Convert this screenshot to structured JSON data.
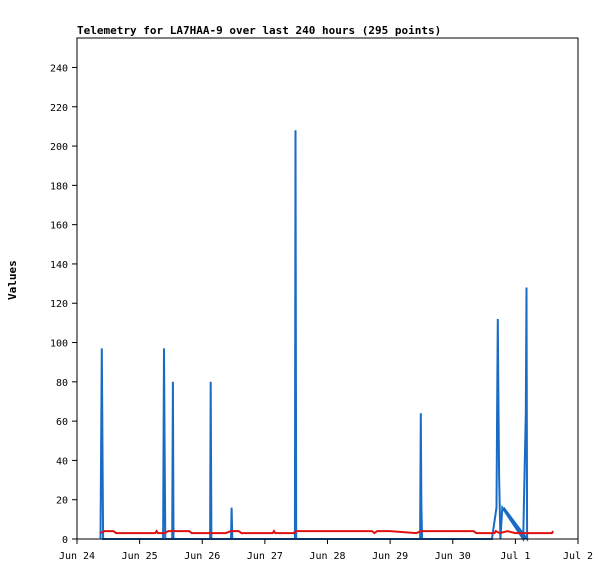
{
  "chart_data": {
    "type": "line",
    "title": "Telemetry for LA7HAA-9 over last 240 hours (295 points)",
    "xlabel": "",
    "ylabel": "Values",
    "ylim": [
      0,
      255
    ],
    "yticks": [
      0,
      20,
      40,
      60,
      80,
      100,
      120,
      140,
      160,
      180,
      200,
      220,
      240
    ],
    "xlim": [
      "2021-06-24T00:00",
      "2021-07-02T00:00"
    ],
    "xticks": [
      {
        "t": "2021-06-24T00:00",
        "label": "Jun 24"
      },
      {
        "t": "2021-06-25T00:00",
        "label": "Jun 25"
      },
      {
        "t": "2021-06-26T00:00",
        "label": "Jun 26"
      },
      {
        "t": "2021-06-27T00:00",
        "label": "Jun 27"
      },
      {
        "t": "2021-06-28T00:00",
        "label": "Jun 28"
      },
      {
        "t": "2021-06-29T00:00",
        "label": "Jun 29"
      },
      {
        "t": "2021-06-30T00:00",
        "label": "Jun 30"
      },
      {
        "t": "2021-07-01T00:00",
        "label": "Jul 1"
      },
      {
        "t": "2021-07-02T00:00",
        "label": "Jul 2"
      }
    ],
    "grid": false,
    "legend": "none",
    "series": [
      {
        "color": "#1a6bc4",
        "points": [
          [
            "2021-06-24T09:00",
            0
          ],
          [
            "2021-06-24T09:30",
            97
          ],
          [
            "2021-06-24T10:00",
            0
          ],
          [
            "2021-06-25T09:00",
            0
          ],
          [
            "2021-06-25T09:20",
            97
          ],
          [
            "2021-06-25T09:35",
            48
          ],
          [
            "2021-06-25T09:50",
            0
          ],
          [
            "2021-06-25T12:30",
            0
          ],
          [
            "2021-06-25T12:45",
            80
          ],
          [
            "2021-06-25T13:00",
            0
          ],
          [
            "2021-06-26T03:00",
            0
          ],
          [
            "2021-06-26T03:15",
            80
          ],
          [
            "2021-06-26T03:30",
            0
          ],
          [
            "2021-06-26T11:00",
            0
          ],
          [
            "2021-06-26T11:15",
            16
          ],
          [
            "2021-06-26T11:30",
            0
          ],
          [
            "2021-06-27T11:30",
            0
          ],
          [
            "2021-06-27T11:45",
            208
          ],
          [
            "2021-06-27T12:00",
            0
          ],
          [
            "2021-06-29T11:30",
            0
          ],
          [
            "2021-06-29T11:45",
            64
          ],
          [
            "2021-06-29T12:00",
            16
          ],
          [
            "2021-06-29T12:15",
            0
          ],
          [
            "2021-06-30T15:00",
            0
          ],
          [
            "2021-06-30T16:45",
            16
          ],
          [
            "2021-06-30T17:00",
            64
          ],
          [
            "2021-06-30T17:15",
            112
          ],
          [
            "2021-06-30T17:30",
            72
          ],
          [
            "2021-06-30T17:45",
            32
          ],
          [
            "2021-06-30T18:15",
            0
          ],
          [
            "2021-06-30T19:00",
            16
          ],
          [
            "2021-07-01T03:00",
            0
          ],
          [
            "2021-07-01T04:00",
            64
          ],
          [
            "2021-07-01T04:15",
            128
          ],
          [
            "2021-07-01T04:30",
            0
          ],
          [
            "2021-06-30T19:30",
            16
          ],
          [
            "2021-07-01T03:45",
            0
          ]
        ]
      },
      {
        "color": "#e01010",
        "points": [
          [
            "2021-06-24T09:00",
            3
          ],
          [
            "2021-06-24T10:30",
            4
          ],
          [
            "2021-06-24T14:00",
            4
          ],
          [
            "2021-06-24T15:00",
            3
          ],
          [
            "2021-06-25T06:00",
            3
          ],
          [
            "2021-06-25T06:30",
            4
          ],
          [
            "2021-06-25T07:00",
            3
          ],
          [
            "2021-06-25T09:30",
            3
          ],
          [
            "2021-06-25T11:00",
            4
          ],
          [
            "2021-06-25T19:00",
            4
          ],
          [
            "2021-06-25T20:00",
            3
          ],
          [
            "2021-06-26T03:00",
            3
          ],
          [
            "2021-06-26T09:00",
            3
          ],
          [
            "2021-06-26T11:00",
            4
          ],
          [
            "2021-06-26T14:00",
            4
          ],
          [
            "2021-06-26T15:00",
            3
          ],
          [
            "2021-06-27T03:00",
            3
          ],
          [
            "2021-06-27T03:30",
            4
          ],
          [
            "2021-06-27T04:00",
            3
          ],
          [
            "2021-06-27T11:00",
            3
          ],
          [
            "2021-06-27T12:00",
            4
          ],
          [
            "2021-06-28T17:00",
            4
          ],
          [
            "2021-06-28T18:00",
            3
          ],
          [
            "2021-06-28T19:00",
            4
          ],
          [
            "2021-06-29T00:00",
            4
          ],
          [
            "2021-06-29T10:00",
            3
          ],
          [
            "2021-06-29T12:00",
            4
          ],
          [
            "2021-06-30T08:00",
            4
          ],
          [
            "2021-06-30T09:00",
            3
          ],
          [
            "2021-06-30T16:00",
            3
          ],
          [
            "2021-06-30T16:30",
            4
          ],
          [
            "2021-06-30T18:00",
            3
          ],
          [
            "2021-06-30T21:00",
            4
          ],
          [
            "2021-07-01T00:00",
            3
          ],
          [
            "2021-07-01T02:00",
            3
          ],
          [
            "2021-07-01T05:00",
            3
          ],
          [
            "2021-07-01T14:00",
            3
          ],
          [
            "2021-07-01T14:30",
            4
          ]
        ]
      },
      {
        "color": "#000000",
        "points": [
          [
            "2021-06-24T09:00",
            0
          ],
          [
            "2021-07-01T14:30",
            0
          ]
        ]
      }
    ]
  }
}
